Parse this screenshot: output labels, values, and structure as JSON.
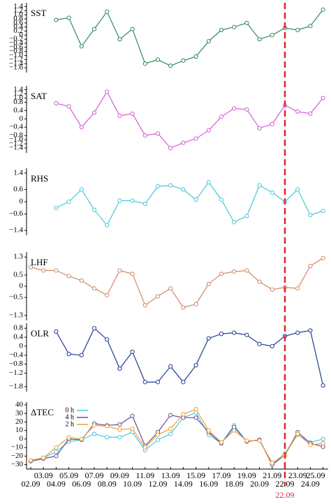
{
  "chart_data": [
    {
      "type": "line",
      "ylabel": "SST",
      "ylim": [
        -1.7,
        1.45
      ],
      "yticks": [
        1.4,
        1.2,
        {
          "value": 1.0,
          "label": "1.0"
        },
        0.8,
        0.6,
        0.4,
        0.2,
        0,
        {
          "value": -0.2,
          "label": "−0.2"
        },
        {
          "value": -0.4,
          "label": "−0.4"
        },
        {
          "value": -0.6,
          "label": "−0.6"
        },
        {
          "value": -0.8,
          "label": "−0.8"
        },
        {
          "value": -1.0,
          "label": "−1.0"
        },
        {
          "value": -1.2,
          "label": "−1.2"
        },
        {
          "value": -1.4,
          "label": "−1.4"
        },
        {
          "value": -1.6,
          "label": "−1.6"
        }
      ],
      "series": [
        {
          "color": "#2e8b57",
          "values": [
            null,
            null,
            0.75,
            0.85,
            -0.55,
            0.3,
            1.15,
            -0.2,
            0.3,
            -1.4,
            -1.2,
            -1.5,
            -1.25,
            -1.05,
            -0.3,
            0.25,
            0.4,
            0.6,
            -0.2,
            0,
            0.35,
            0.25,
            0.45,
            1.25
          ]
        }
      ]
    },
    {
      "type": "line",
      "ylabel": "SAT",
      "ylim": [
        -1.5,
        1.45
      ],
      "yticks": [
        1.4,
        1.2,
        {
          "value": 1.0,
          "label": "1.0"
        },
        0.8,
        0.4,
        0,
        {
          "value": -0.4,
          "label": "−0.4"
        },
        {
          "value": -0.8,
          "label": "−0.8"
        },
        {
          "value": -1.0,
          "label": "−1.0"
        },
        {
          "value": -1.2,
          "label": "−1.2"
        },
        {
          "value": -1.4,
          "label": "−1.4"
        }
      ],
      "series": [
        {
          "color": "#d65cd6",
          "values": [
            null,
            null,
            0.75,
            0.6,
            -0.4,
            0.3,
            1.3,
            0.15,
            0.25,
            -0.8,
            -0.7,
            -1.4,
            -1.15,
            -0.95,
            -0.55,
            0.1,
            0.5,
            0.45,
            -0.45,
            -0.25,
            0.65,
            0.35,
            0.25,
            1.0
          ]
        }
      ]
    },
    {
      "type": "line",
      "ylabel": "RHS",
      "ylim": [
        -1.5,
        1.5
      ],
      "yticks": [
        1.4,
        0.6,
        0,
        {
          "value": -0.6,
          "label": "−0.6"
        },
        {
          "value": -1.4,
          "label": "−1.4"
        }
      ],
      "series": [
        {
          "color": "#48c8d8",
          "values": [
            null,
            null,
            -0.3,
            0,
            0.6,
            -0.4,
            -1.15,
            0.05,
            0.05,
            -0.1,
            0.75,
            0.8,
            0.6,
            0.1,
            0.95,
            0.1,
            -1.0,
            -0.7,
            0.8,
            0.45,
            0,
            0.6,
            -0.65,
            -0.45
          ]
        }
      ]
    },
    {
      "type": "line",
      "ylabel": "LHF",
      "ylim": [
        -1.4,
        1.4
      ],
      "yticks": [
        1.3,
        0.5,
        0,
        {
          "value": -0.5,
          "label": "−0.5"
        },
        {
          "value": -1.3,
          "label": "−1.3"
        }
      ],
      "series": [
        {
          "color": "#d08a64",
          "values": [
            0.85,
            0.7,
            0.7,
            0.45,
            0.25,
            -0.1,
            -0.4,
            0.7,
            0.55,
            -0.85,
            -0.45,
            -0.1,
            -0.95,
            -0.8,
            0.1,
            0.55,
            0.65,
            0.7,
            0.2,
            -0.15,
            -0.05,
            -0.1,
            0.9,
            1.25
          ]
        }
      ]
    },
    {
      "type": "line",
      "ylabel": "OLR",
      "ylim": [
        -1.9,
        0.9
      ],
      "yticks": [
        0.8,
        0.4,
        0,
        {
          "value": -0.4,
          "label": "−0.4"
        },
        {
          "value": -0.8,
          "label": "−0.8"
        },
        {
          "value": -1.2,
          "label": "−1.2"
        },
        {
          "value": -1.8,
          "label": "−1.8"
        }
      ],
      "series": [
        {
          "color": "#1f3a93",
          "values": [
            null,
            null,
            0.65,
            -0.35,
            -0.4,
            0.8,
            0.3,
            -1.0,
            -0.25,
            -1.6,
            -1.6,
            -0.9,
            -1.6,
            -0.85,
            0.35,
            0.55,
            0.6,
            0.5,
            0.1,
            0,
            0.45,
            0.6,
            0.7,
            -1.75
          ]
        }
      ]
    },
    {
      "type": "line",
      "ylabel": "ΔTEC",
      "ylim": [
        -32,
        40
      ],
      "yticks": [
        40,
        30,
        20,
        10,
        0,
        {
          "value": -10,
          "label": "−10"
        },
        {
          "value": -20,
          "label": "−20"
        },
        {
          "value": -30,
          "label": "−30"
        }
      ],
      "categories": [
        "02.09",
        "03.09",
        "04.09",
        "05.09",
        "06.09",
        "07.09",
        "08.09",
        "09.09",
        "10.09",
        "11.09",
        "12.09",
        "13.09",
        "14.09",
        "15.09",
        "16.09",
        "17.09",
        "18.09",
        "19.09",
        "20.09",
        "21.09",
        "22.09",
        "23.09",
        "24.09",
        "25.09"
      ],
      "marker": {
        "label": "22.09",
        "color": "#e0262a"
      },
      "series": [
        {
          "name": "0 h",
          "color": "#48c8e8",
          "values": [
            -25,
            -22,
            -15,
            -3,
            -1,
            6,
            2,
            2,
            8,
            -13,
            -1,
            6,
            25,
            31,
            5,
            -5,
            16,
            -3,
            -1,
            -29,
            -17,
            5,
            -4,
            0
          ]
        },
        {
          "name": "4 h",
          "color": "#6a4c9c",
          "values": [
            -26,
            -23,
            -20,
            0,
            -1,
            18,
            16,
            17,
            27,
            -8,
            8,
            28,
            25,
            25,
            8,
            -5,
            14,
            -3,
            -1,
            -30,
            -19,
            8,
            -5,
            -9
          ]
        },
        {
          "name": "2 h",
          "color": "#f0a030",
          "values": [
            -25,
            -22,
            -10,
            2,
            0,
            16,
            15,
            11,
            12,
            -10,
            5,
            12,
            29,
            35,
            10,
            -4,
            10,
            -2,
            -2,
            -28,
            -19,
            6,
            -7,
            -5
          ]
        }
      ]
    }
  ]
}
